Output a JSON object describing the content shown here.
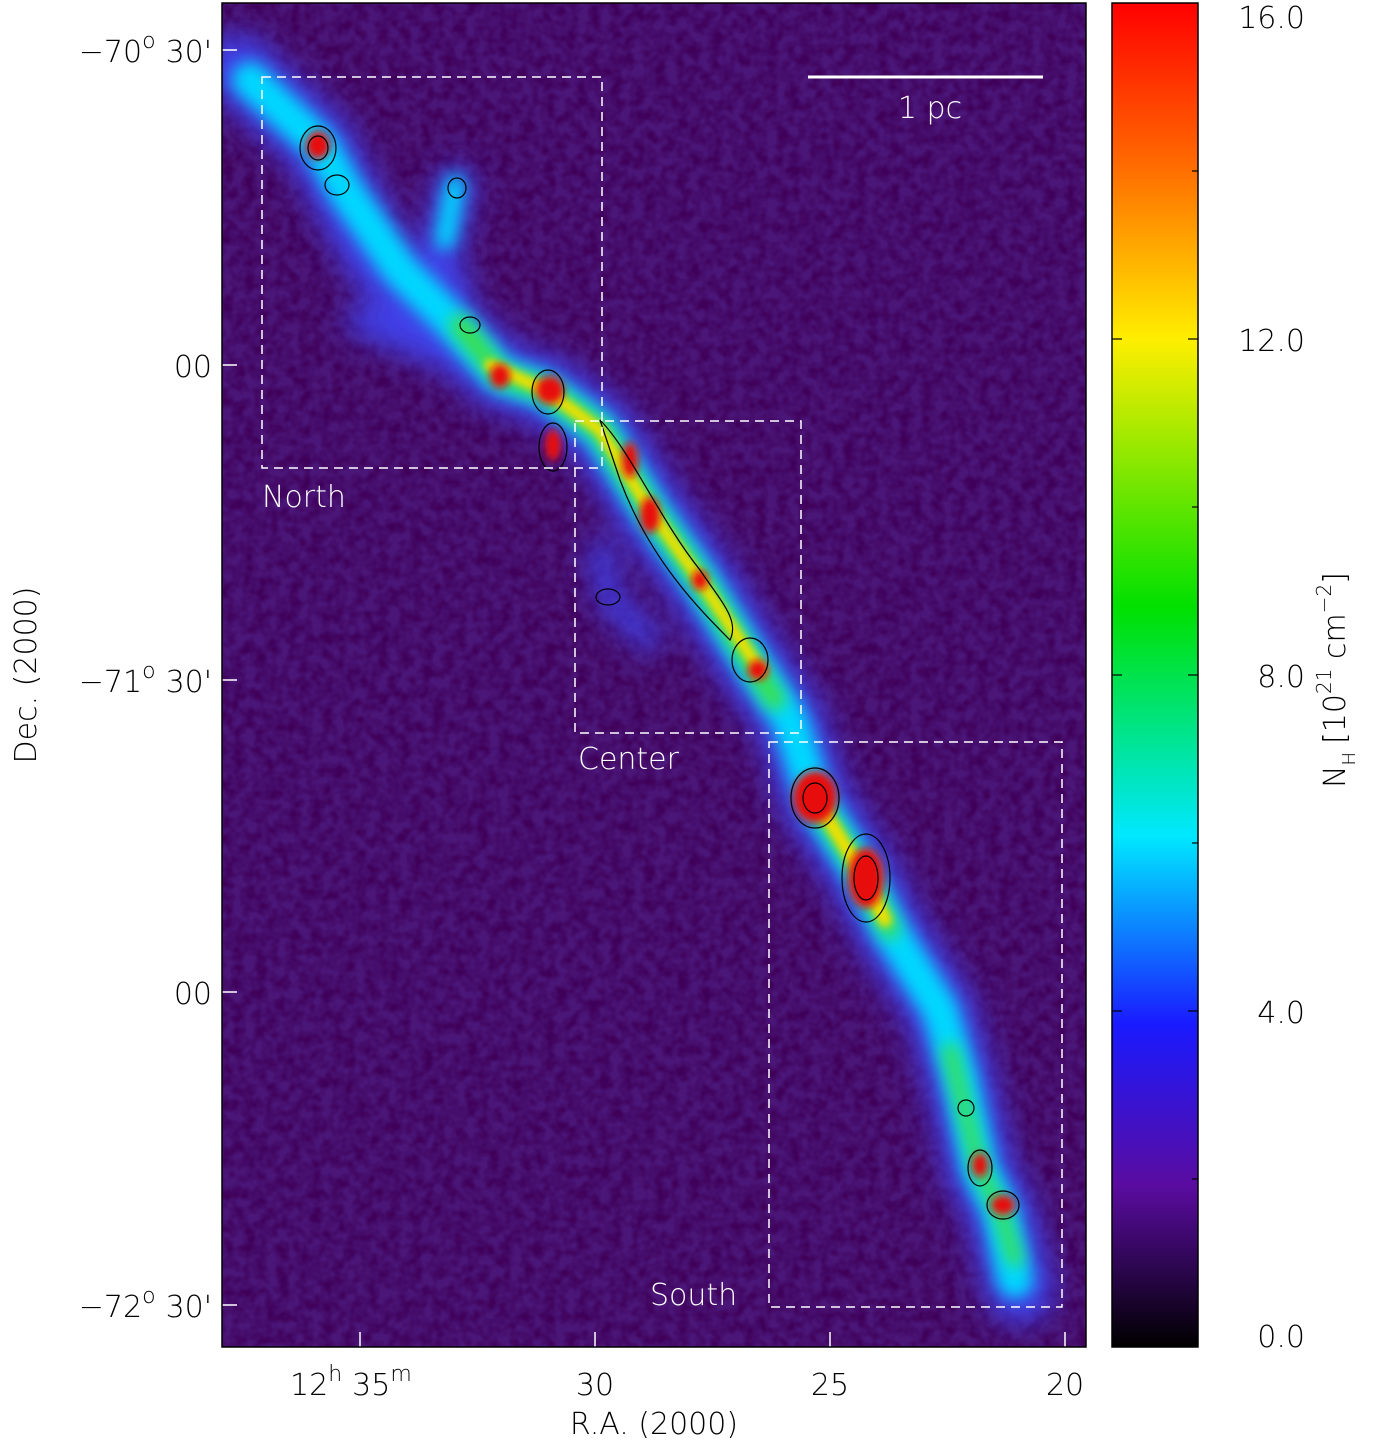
{
  "figure": {
    "x_axis": {
      "title": "R.A. (2000)",
      "first_tick": {
        "hours": "12",
        "h": "h",
        "minutes": "35",
        "m": "m"
      },
      "ticks": [
        "30",
        "25",
        "20"
      ]
    },
    "y_axis": {
      "title": "Dec. (2000)",
      "ticks": [
        {
          "deg": "−70",
          "o": "o",
          "min": "30'"
        },
        {
          "min": "00"
        },
        {
          "deg": "−71",
          "o": "o",
          "min": "30'"
        },
        {
          "min": "00"
        },
        {
          "deg": "−72",
          "o": "o",
          "min": "30'"
        }
      ]
    },
    "colorbar": {
      "ticks": [
        "16.0",
        "12.0",
        "8.0",
        "4.0",
        "0.0"
      ],
      "label": {
        "symbol": "N",
        "subscript": "H",
        "open": "[10",
        "exponent": "21",
        "unit": " cm",
        "unit_exponent": "−2",
        "close": "]"
      }
    },
    "regions": [
      "North",
      "Center",
      "South"
    ],
    "scale_bar": "1 pc"
  }
}
